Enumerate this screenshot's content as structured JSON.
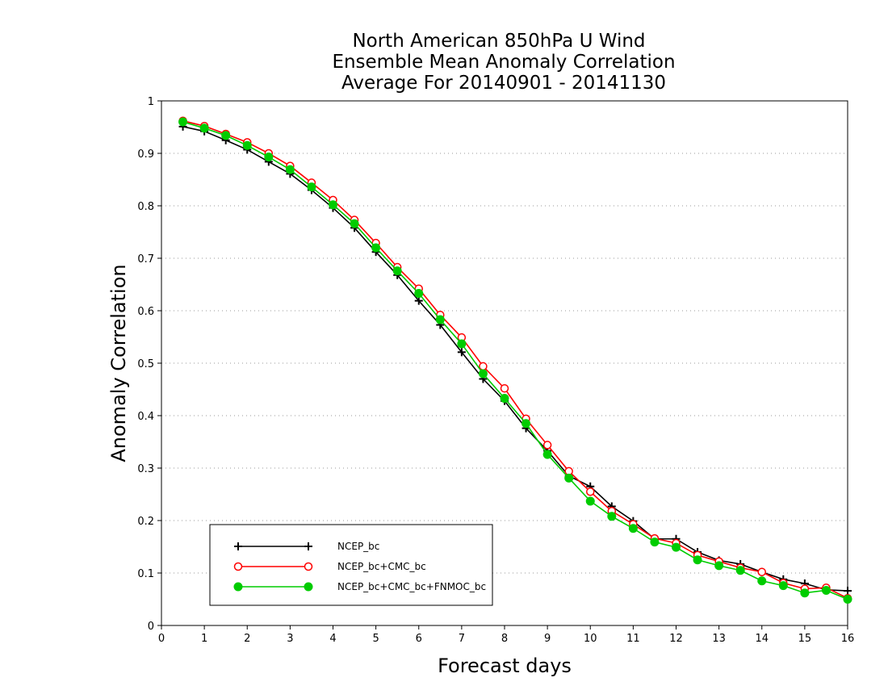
{
  "chart_data": {
    "type": "line",
    "title": [
      "North American 850hPa U Wind",
      "Ensemble Mean Anomaly Correlation",
      "Average For 20140901 - 20141130"
    ],
    "xlabel": "Forecast days",
    "ylabel": "Anomaly Correlation",
    "xlim": [
      0,
      16
    ],
    "ylim": [
      0,
      1
    ],
    "xticks": [
      "0",
      "1",
      "2",
      "3",
      "4",
      "5",
      "6",
      "7",
      "8",
      "9",
      "10",
      "11",
      "12",
      "13",
      "14",
      "15",
      "16"
    ],
    "yticks": [
      "0",
      "0.1",
      "0.2",
      "0.3",
      "0.4",
      "0.5",
      "0.6",
      "0.7",
      "0.8",
      "0.9",
      "1"
    ],
    "grid": "horizontal dotted",
    "legend_position": "bottom-left",
    "x": [
      0.5,
      1,
      1.5,
      2,
      2.5,
      3,
      3.5,
      4,
      4.5,
      5,
      5.5,
      6,
      6.5,
      7,
      7.5,
      8,
      8.5,
      9,
      9.5,
      10,
      10.5,
      11,
      11.5,
      12,
      12.5,
      13,
      13.5,
      14,
      14.5,
      15,
      15.5,
      16
    ],
    "series": [
      {
        "name": "NCEP_bc",
        "color": "#000000",
        "marker": "plus",
        "values": [
          0.951,
          0.942,
          0.925,
          0.907,
          0.884,
          0.861,
          0.83,
          0.796,
          0.758,
          0.712,
          0.668,
          0.619,
          0.573,
          0.521,
          0.47,
          0.428,
          0.376,
          0.333,
          0.285,
          0.265,
          0.227,
          0.199,
          0.165,
          0.165,
          0.14,
          0.124,
          0.117,
          0.102,
          0.088,
          0.08,
          0.068,
          0.066
        ]
      },
      {
        "name": "NCEP_bc+CMC_bc",
        "color": "#ff0000",
        "marker": "open-circle",
        "values": [
          0.962,
          0.952,
          0.937,
          0.921,
          0.9,
          0.876,
          0.844,
          0.811,
          0.773,
          0.729,
          0.683,
          0.642,
          0.592,
          0.549,
          0.494,
          0.452,
          0.394,
          0.344,
          0.294,
          0.255,
          0.218,
          0.193,
          0.166,
          0.157,
          0.134,
          0.122,
          0.11,
          0.102,
          0.081,
          0.07,
          0.072,
          0.052
        ]
      },
      {
        "name": "NCEP_bc+CMC_bc+FNMOC_bc",
        "color": "#00cc00",
        "marker": "filled-circle",
        "values": [
          0.96,
          0.948,
          0.934,
          0.915,
          0.893,
          0.869,
          0.836,
          0.802,
          0.766,
          0.72,
          0.676,
          0.633,
          0.583,
          0.537,
          0.48,
          0.433,
          0.385,
          0.326,
          0.281,
          0.237,
          0.208,
          0.185,
          0.159,
          0.149,
          0.125,
          0.114,
          0.105,
          0.085,
          0.076,
          0.062,
          0.067,
          0.05
        ]
      }
    ]
  }
}
